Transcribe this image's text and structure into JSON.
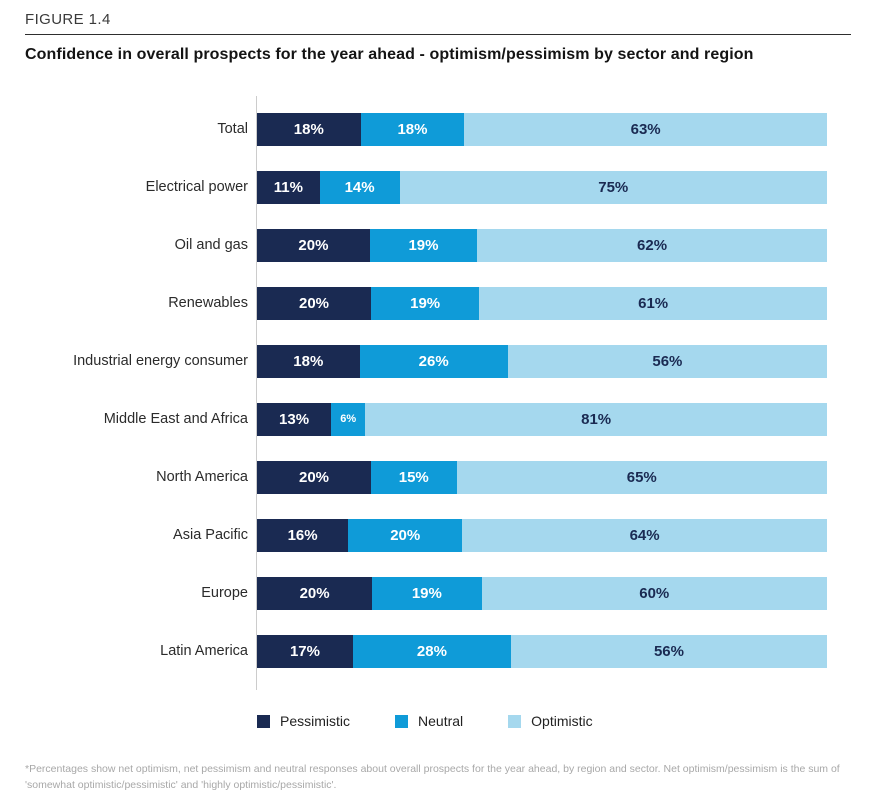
{
  "figure_label": "FIGURE 1.4",
  "title": "Confidence in overall prospects for the year ahead - optimism/pessimism by sector and region",
  "footnote": "*Percentages show net optimism, net pessimism and neutral responses about overall prospects for the year ahead, by region and sector. Net optimism/pessimism is the sum of 'somewhat optimistic/pessimistic' and 'highly optimistic/pessimistic'.",
  "colors": {
    "pessimistic": "#1a2a52",
    "neutral": "#0f9bd8",
    "optimistic": "#a5d8ee",
    "axis": "#cccccc",
    "value_on_dark": "#ffffff",
    "value_on_light": "#1a2a52"
  },
  "legend": {
    "items": [
      {
        "label": "Pessimistic",
        "color": "#1a2a52"
      },
      {
        "label": "Neutral",
        "color": "#0f9bd8"
      },
      {
        "label": "Optimistic",
        "color": "#a5d8ee"
      }
    ]
  },
  "chart_data": {
    "type": "bar",
    "orientation": "horizontal",
    "stacked": true,
    "grid": false,
    "legend_position": "bottom",
    "xlim": [
      0,
      100
    ],
    "value_suffix": "%",
    "title": "Confidence in overall prospects for the year ahead - optimism/pessimism by sector and region",
    "categories": [
      "Total",
      "Electrical power",
      "Oil and gas",
      "Renewables",
      "Industrial energy consumer",
      "Middle East and Africa",
      "North America",
      "Asia Pacific",
      "Europe",
      "Latin America"
    ],
    "series": [
      {
        "name": "Pessimistic",
        "color": "#1a2a52",
        "label_color": "#ffffff",
        "values": [
          18,
          11,
          20,
          20,
          18,
          13,
          20,
          16,
          20,
          17
        ]
      },
      {
        "name": "Neutral",
        "color": "#0f9bd8",
        "label_color": "#ffffff",
        "values": [
          18,
          14,
          19,
          19,
          26,
          6,
          15,
          20,
          19,
          28
        ]
      },
      {
        "name": "Optimistic",
        "color": "#a5d8ee",
        "label_color": "#1a2a52",
        "values": [
          63,
          75,
          62,
          61,
          56,
          81,
          65,
          64,
          60,
          56
        ]
      }
    ]
  }
}
